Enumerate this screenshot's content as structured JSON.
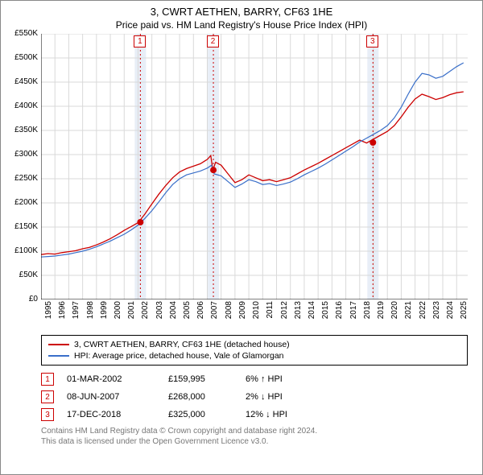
{
  "title": "3, CWRT AETHEN, BARRY, CF63 1HE",
  "subtitle": "Price paid vs. HM Land Registry's House Price Index (HPI)",
  "chart": {
    "type": "line",
    "ylim": [
      0,
      550000
    ],
    "ytick_step": 50000,
    "ytick_prefix": "£",
    "ytick_suffix": "K",
    "xlim": [
      1995,
      2025.8
    ],
    "xticks": [
      1995,
      1996,
      1997,
      1998,
      1999,
      2000,
      2001,
      2002,
      2003,
      2004,
      2005,
      2006,
      2007,
      2008,
      2009,
      2010,
      2011,
      2012,
      2013,
      2014,
      2015,
      2016,
      2017,
      2018,
      2019,
      2020,
      2021,
      2022,
      2023,
      2024,
      2025
    ],
    "background_color": "#ffffff",
    "grid_color": "#d9d9d9",
    "axis_color": "#000000",
    "tick_fontsize": 10,
    "series": [
      {
        "name": "red",
        "color": "#cc0000",
        "width": 1.3,
        "label": "3, CWRT AETHEN, BARRY, CF63 1HE (detached house)",
        "points": [
          [
            1995,
            93
          ],
          [
            1995.5,
            95
          ],
          [
            1996,
            94
          ],
          [
            1996.5,
            97
          ],
          [
            1997,
            99
          ],
          [
            1997.5,
            101
          ],
          [
            1998,
            105
          ],
          [
            1998.5,
            108
          ],
          [
            1999,
            113
          ],
          [
            1999.5,
            119
          ],
          [
            2000,
            126
          ],
          [
            2000.5,
            134
          ],
          [
            2001,
            143
          ],
          [
            2001.5,
            151
          ],
          [
            2002,
            159
          ],
          [
            2002.5,
            177
          ],
          [
            2003,
            198
          ],
          [
            2003.5,
            218
          ],
          [
            2004,
            236
          ],
          [
            2004.5,
            252
          ],
          [
            2005,
            264
          ],
          [
            2005.5,
            271
          ],
          [
            2006,
            276
          ],
          [
            2006.5,
            281
          ],
          [
            2007,
            290
          ],
          [
            2007.25,
            298
          ],
          [
            2007.4,
            268
          ],
          [
            2007.6,
            284
          ],
          [
            2008,
            278
          ],
          [
            2008.5,
            260
          ],
          [
            2009,
            242
          ],
          [
            2009.5,
            248
          ],
          [
            2010,
            258
          ],
          [
            2010.5,
            252
          ],
          [
            2011,
            246
          ],
          [
            2011.5,
            248
          ],
          [
            2012,
            244
          ],
          [
            2012.5,
            248
          ],
          [
            2013,
            252
          ],
          [
            2013.5,
            260
          ],
          [
            2014,
            268
          ],
          [
            2014.5,
            275
          ],
          [
            2015,
            282
          ],
          [
            2015.5,
            290
          ],
          [
            2016,
            298
          ],
          [
            2016.5,
            306
          ],
          [
            2017,
            314
          ],
          [
            2017.5,
            322
          ],
          [
            2018,
            330
          ],
          [
            2018.5,
            324
          ],
          [
            2019,
            332
          ],
          [
            2019.5,
            340
          ],
          [
            2020,
            348
          ],
          [
            2020.5,
            360
          ],
          [
            2021,
            378
          ],
          [
            2021.5,
            398
          ],
          [
            2022,
            415
          ],
          [
            2022.5,
            425
          ],
          [
            2023,
            420
          ],
          [
            2023.5,
            414
          ],
          [
            2024,
            418
          ],
          [
            2024.5,
            424
          ],
          [
            2025,
            428
          ],
          [
            2025.5,
            430
          ]
        ]
      },
      {
        "name": "blue",
        "color": "#3a6fc9",
        "width": 1.2,
        "label": "HPI: Average price, detached house, Vale of Glamorgan",
        "points": [
          [
            1995,
            88
          ],
          [
            1995.5,
            89
          ],
          [
            1996,
            90
          ],
          [
            1996.5,
            92
          ],
          [
            1997,
            94
          ],
          [
            1997.5,
            97
          ],
          [
            1998,
            100
          ],
          [
            1998.5,
            104
          ],
          [
            1999,
            109
          ],
          [
            1999.5,
            115
          ],
          [
            2000,
            121
          ],
          [
            2000.5,
            128
          ],
          [
            2001,
            135
          ],
          [
            2001.5,
            144
          ],
          [
            2002,
            154
          ],
          [
            2002.5,
            168
          ],
          [
            2003,
            184
          ],
          [
            2003.5,
            202
          ],
          [
            2004,
            221
          ],
          [
            2004.5,
            238
          ],
          [
            2005,
            250
          ],
          [
            2005.5,
            258
          ],
          [
            2006,
            262
          ],
          [
            2006.5,
            266
          ],
          [
            2007,
            272
          ],
          [
            2007.3,
            278
          ],
          [
            2007.5,
            260
          ],
          [
            2008,
            256
          ],
          [
            2008.5,
            244
          ],
          [
            2009,
            232
          ],
          [
            2009.5,
            239
          ],
          [
            2010,
            248
          ],
          [
            2010.5,
            244
          ],
          [
            2011,
            238
          ],
          [
            2011.5,
            240
          ],
          [
            2012,
            236
          ],
          [
            2012.5,
            239
          ],
          [
            2013,
            243
          ],
          [
            2013.5,
            250
          ],
          [
            2014,
            258
          ],
          [
            2014.5,
            265
          ],
          [
            2015,
            272
          ],
          [
            2015.5,
            280
          ],
          [
            2016,
            289
          ],
          [
            2016.5,
            298
          ],
          [
            2017,
            307
          ],
          [
            2017.5,
            316
          ],
          [
            2018,
            326
          ],
          [
            2018.5,
            334
          ],
          [
            2019,
            342
          ],
          [
            2019.5,
            350
          ],
          [
            2020,
            360
          ],
          [
            2020.5,
            376
          ],
          [
            2021,
            398
          ],
          [
            2021.5,
            425
          ],
          [
            2022,
            450
          ],
          [
            2022.5,
            468
          ],
          [
            2023,
            465
          ],
          [
            2023.5,
            458
          ],
          [
            2024,
            462
          ],
          [
            2024.5,
            472
          ],
          [
            2025,
            482
          ],
          [
            2025.5,
            490
          ]
        ]
      }
    ],
    "transaction_points": [
      {
        "n": "1",
        "x": 2002.17,
        "y": 159.995
      },
      {
        "n": "2",
        "x": 2007.44,
        "y": 268
      },
      {
        "n": "3",
        "x": 2018.96,
        "y": 325
      }
    ],
    "transaction_band_color": "#e8eef7",
    "transaction_line_color": "#cc0000",
    "point_marker_color": "#cc0000",
    "point_marker_radius": 4
  },
  "legend": {
    "entries": [
      {
        "color": "#cc0000",
        "label": "3, CWRT AETHEN, BARRY, CF63 1HE (detached house)"
      },
      {
        "color": "#3a6fc9",
        "label": "HPI: Average price, detached house, Vale of Glamorgan"
      }
    ]
  },
  "transactions": [
    {
      "n": "1",
      "date": "01-MAR-2002",
      "price": "£159,995",
      "diff": "6% ↑ HPI",
      "color": "#cc0000"
    },
    {
      "n": "2",
      "date": "08-JUN-2007",
      "price": "£268,000",
      "diff": "2% ↓ HPI",
      "color": "#cc0000"
    },
    {
      "n": "3",
      "date": "17-DEC-2018",
      "price": "£325,000",
      "diff": "12% ↓ HPI",
      "color": "#cc0000"
    }
  ],
  "footer": {
    "line1": "Contains HM Land Registry data © Crown copyright and database right 2024.",
    "line2": "This data is licensed under the Open Government Licence v3.0."
  }
}
